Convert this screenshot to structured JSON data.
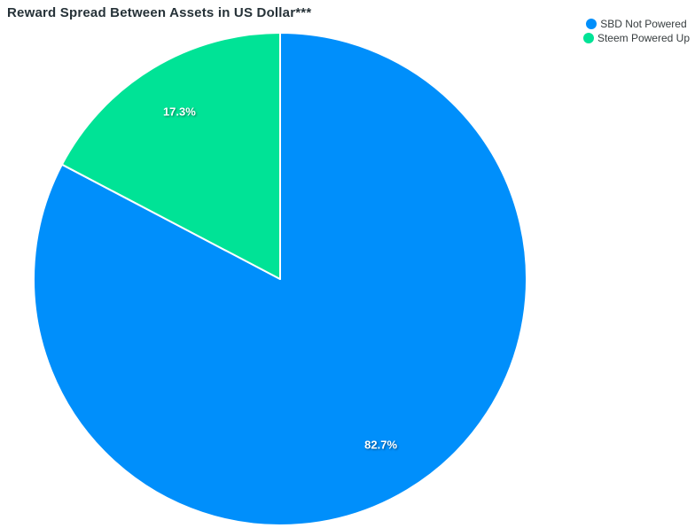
{
  "chart": {
    "title": "Reward Spread Between Assets in US Dollar***"
  },
  "chart_data": {
    "type": "pie",
    "title": "Reward Spread Between Assets in US Dollar***",
    "labels": [
      "SBD Not Powered",
      "Steem Powered Up"
    ],
    "values": [
      82.7,
      17.3
    ],
    "display_labels": [
      "82.7%",
      "17.3%"
    ],
    "colors": [
      "#008FFB",
      "#00E396"
    ],
    "slice_divider_color": "#ffffff",
    "start_angle_deg": 0,
    "direction": "clockwise",
    "legend_position": "right"
  },
  "legend": {
    "items": [
      {
        "label": "SBD Not Powered",
        "color": "#008FFB",
        "marker": "circle-icon"
      },
      {
        "label": "Steem Powered Up",
        "color": "#00E396",
        "marker": "circle-icon"
      }
    ]
  }
}
